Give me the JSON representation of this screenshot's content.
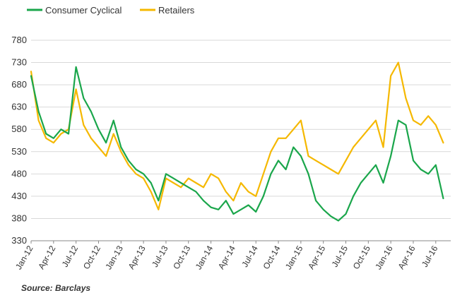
{
  "chart_data": {
    "type": "line",
    "title": "",
    "xlabel": "",
    "ylabel": "",
    "ylim": [
      330,
      780
    ],
    "yticks": [
      330,
      380,
      430,
      480,
      530,
      580,
      630,
      680,
      730,
      780
    ],
    "xlim": [
      "2012-01",
      "2016-09"
    ],
    "xticks": [
      "Jan-12",
      "Apr-12",
      "Jul-12",
      "Oct-12",
      "Jan-13",
      "Apr-13",
      "Jul-13",
      "Oct-13",
      "Jan-14",
      "Apr-14",
      "Jul-14",
      "Oct-14",
      "Jan-15",
      "Apr-15",
      "Jul-15",
      "Oct-15",
      "Jan-16",
      "Apr-16",
      "Jul-16"
    ],
    "grid": "horizontal",
    "legend_position": "top-left",
    "series": [
      {
        "name": "Consumer Cyclical",
        "color": "#1aa64b",
        "x": [
          "2012-01",
          "2012-02",
          "2012-03",
          "2012-04",
          "2012-05",
          "2012-06",
          "2012-07",
          "2012-08",
          "2012-09",
          "2012-10",
          "2012-11",
          "2012-12",
          "2013-01",
          "2013-02",
          "2013-03",
          "2013-04",
          "2013-05",
          "2013-06",
          "2013-07",
          "2013-08",
          "2013-09",
          "2013-10",
          "2013-11",
          "2013-12",
          "2014-01",
          "2014-02",
          "2014-03",
          "2014-04",
          "2014-05",
          "2014-06",
          "2014-07",
          "2014-08",
          "2014-09",
          "2014-10",
          "2014-11",
          "2014-12",
          "2015-01",
          "2015-02",
          "2015-03",
          "2015-04",
          "2015-05",
          "2015-06",
          "2015-07",
          "2015-08",
          "2015-09",
          "2015-10",
          "2015-11",
          "2015-12",
          "2016-01",
          "2016-02",
          "2016-03",
          "2016-04",
          "2016-05",
          "2016-06",
          "2016-07",
          "2016-08"
        ],
        "values": [
          700,
          620,
          570,
          560,
          580,
          570,
          720,
          650,
          620,
          580,
          550,
          600,
          540,
          510,
          490,
          480,
          460,
          420,
          480,
          470,
          460,
          450,
          440,
          420,
          405,
          400,
          420,
          390,
          400,
          410,
          395,
          430,
          480,
          510,
          490,
          540,
          520,
          480,
          420,
          400,
          385,
          375,
          390,
          430,
          460,
          480,
          500,
          460,
          520,
          600,
          590,
          510,
          490,
          480,
          500,
          425
        ]
      },
      {
        "name": "Retailers",
        "color": "#f5b800",
        "x": [
          "2012-01",
          "2012-02",
          "2012-03",
          "2012-04",
          "2012-05",
          "2012-06",
          "2012-07",
          "2012-08",
          "2012-09",
          "2012-10",
          "2012-11",
          "2012-12",
          "2013-01",
          "2013-02",
          "2013-03",
          "2013-04",
          "2013-05",
          "2013-06",
          "2013-07",
          "2013-08",
          "2013-09",
          "2013-10",
          "2013-11",
          "2013-12",
          "2014-01",
          "2014-02",
          "2014-03",
          "2014-04",
          "2014-05",
          "2014-06",
          "2014-07",
          "2014-08",
          "2014-09",
          "2014-10",
          "2014-11",
          "2014-12",
          "2015-01",
          "2015-02",
          "2015-03",
          "2015-04",
          "2015-05",
          "2015-06",
          "2015-07",
          "2015-08",
          "2015-09",
          "2015-10",
          "2015-11",
          "2015-12",
          "2016-01",
          "2016-02",
          "2016-03",
          "2016-04",
          "2016-05",
          "2016-06",
          "2016-07",
          "2016-08"
        ],
        "values": [
          710,
          600,
          560,
          550,
          570,
          580,
          670,
          590,
          560,
          540,
          520,
          570,
          530,
          500,
          480,
          470,
          440,
          400,
          470,
          460,
          450,
          470,
          460,
          450,
          480,
          470,
          440,
          420,
          460,
          440,
          430,
          480,
          530,
          560,
          560,
          580,
          600,
          520,
          510,
          500,
          490,
          480,
          510,
          540,
          560,
          580,
          600,
          540,
          700,
          730,
          650,
          600,
          590,
          610,
          590,
          550
        ]
      }
    ]
  },
  "source_note": "Source: Barclays"
}
